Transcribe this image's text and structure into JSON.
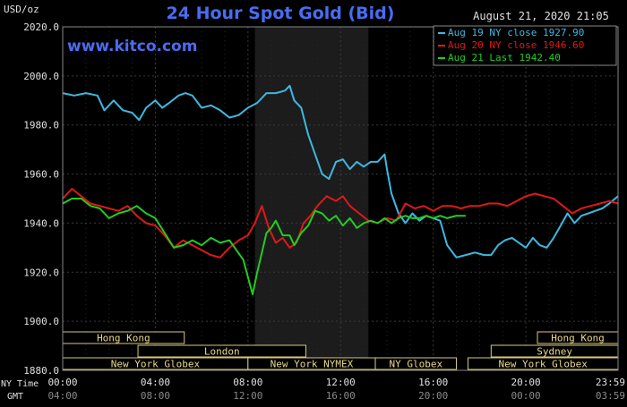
{
  "header": {
    "unit": "USD/oz",
    "title": "24 Hour Spot Gold (Bid)",
    "datetime": "August 21, 2020 21:05",
    "watermark": "www.kitco.com"
  },
  "legend": [
    {
      "label": "Aug 19 NY close 1927.90",
      "color": "#3fb8e0"
    },
    {
      "label": "Aug 20 NY close 1946.60",
      "color": "#e01818"
    },
    {
      "label": "Aug 21 Last 1942.40",
      "color": "#22cc22"
    }
  ],
  "axis_labels": {
    "ny_time": "NY Time",
    "gmt": "GMT"
  },
  "sessions": [
    {
      "label": "Hong Kong",
      "row": 0,
      "start": 0,
      "end": 5.25
    },
    {
      "label": "London",
      "row": 1,
      "start": 3.25,
      "end": 10.5
    },
    {
      "label": "New York Globex",
      "row": 2,
      "start": 0,
      "end": 8.0
    },
    {
      "label": "New York NYMEX",
      "row": 2,
      "start": 8.0,
      "end": 13.5
    },
    {
      "label": "NY Globex",
      "row": 2,
      "start": 13.5,
      "end": 17.0
    },
    {
      "label": "Hong Kong",
      "row": 0,
      "start": 20.5,
      "end": 23.98
    },
    {
      "label": "Sydney",
      "row": 1,
      "start": 18.5,
      "end": 23.98
    },
    {
      "label": "New York Globex",
      "row": 2,
      "start": 17.5,
      "end": 23.98
    }
  ],
  "chart_data": {
    "type": "line",
    "title": "24 Hour Spot Gold (Bid)",
    "ylabel": "USD/oz",
    "xlabel": "NY Time",
    "ylim": [
      1880,
      2020
    ],
    "xlim": [
      0,
      23.98
    ],
    "yticks": [
      "2020.0",
      "2000.0",
      "1980.0",
      "1960.0",
      "1940.0",
      "1920.0",
      "1900.0",
      "1880.0"
    ],
    "ytick_values": [
      2020,
      2000,
      1980,
      1960,
      1940,
      1920,
      1900,
      1880
    ],
    "xticks_ny": [
      "00:00",
      "04:00",
      "08:00",
      "12:00",
      "16:00",
      "20:00",
      "23:59"
    ],
    "xticks_gmt": [
      "04:00",
      "08:00",
      "12:00",
      "16:00",
      "20:00",
      "00:00",
      "03:59"
    ],
    "xtick_values": [
      0,
      4,
      8,
      12,
      16,
      20,
      23.98
    ],
    "shaded_range": [
      8.3,
      13.2
    ],
    "grid": true,
    "legend_position": "top-right",
    "series": [
      {
        "name": "Aug 19 NY close 1927.90",
        "color": "#3fb8e0",
        "x": [
          0,
          0.5,
          1.0,
          1.5,
          1.8,
          2.2,
          2.6,
          3.0,
          3.3,
          3.6,
          4.0,
          4.3,
          4.6,
          5.0,
          5.3,
          5.6,
          6.0,
          6.4,
          6.8,
          7.2,
          7.6,
          8.0,
          8.4,
          8.8,
          9.2,
          9.6,
          9.8,
          10.0,
          10.3,
          10.6,
          10.9,
          11.2,
          11.5,
          11.8,
          12.1,
          12.4,
          12.7,
          13.0,
          13.3,
          13.6,
          13.9,
          14.0,
          14.2,
          14.5,
          14.8,
          15.1,
          15.4,
          15.7,
          16.0,
          16.3,
          16.6,
          17.0,
          17.4,
          17.8,
          18.2,
          18.5,
          18.8,
          19.1,
          19.4,
          19.7,
          20.0,
          20.3,
          20.6,
          20.9,
          21.2,
          21.5,
          21.8,
          22.1,
          22.4,
          22.7,
          23.0,
          23.3,
          23.6,
          23.98
        ],
        "values": [
          1993,
          1992,
          1993,
          1992,
          1986,
          1990,
          1986,
          1985,
          1982,
          1987,
          1990,
          1987,
          1989,
          1992,
          1993,
          1992,
          1987,
          1988,
          1986,
          1983,
          1984,
          1987,
          1989,
          1993,
          1993,
          1994,
          1996,
          1990,
          1987,
          1976,
          1968,
          1960,
          1958,
          1965,
          1966,
          1962,
          1965,
          1963,
          1965,
          1965,
          1968,
          1962,
          1952,
          1944,
          1940,
          1944,
          1941,
          1943,
          1942,
          1941,
          1931,
          1926,
          1927,
          1928,
          1927,
          1927,
          1931,
          1933,
          1934,
          1932,
          1930,
          1934,
          1931,
          1930,
          1934,
          1939,
          1944,
          1940,
          1943,
          1944,
          1945,
          1946,
          1948,
          1951
        ]
      },
      {
        "name": "Aug 20 NY close 1946.60",
        "color": "#e01818",
        "x": [
          0,
          0.4,
          0.8,
          1.2,
          1.6,
          2.0,
          2.4,
          2.8,
          3.2,
          3.6,
          4.0,
          4.4,
          4.8,
          5.2,
          5.6,
          6.0,
          6.4,
          6.8,
          7.2,
          7.6,
          8.0,
          8.3,
          8.6,
          8.9,
          9.2,
          9.5,
          9.8,
          10.1,
          10.4,
          10.7,
          11.0,
          11.4,
          11.8,
          12.1,
          12.4,
          12.8,
          13.2,
          13.6,
          14.0,
          14.4,
          14.8,
          15.2,
          15.6,
          16.0,
          16.4,
          16.8,
          17.2,
          17.6,
          18.0,
          18.4,
          18.8,
          19.2,
          19.6,
          20.0,
          20.4,
          20.8,
          21.2,
          21.6,
          22.0,
          22.4,
          22.8,
          23.2,
          23.6,
          23.98
        ],
        "values": [
          1950,
          1954,
          1951,
          1948,
          1947,
          1946,
          1945,
          1947,
          1943,
          1940,
          1939,
          1935,
          1930,
          1933,
          1931,
          1929,
          1927,
          1926,
          1930,
          1933,
          1935,
          1940,
          1947,
          1938,
          1932,
          1934,
          1930,
          1932,
          1940,
          1943,
          1947,
          1951,
          1949,
          1951,
          1947,
          1944,
          1941,
          1940,
          1942,
          1941,
          1948,
          1946,
          1947,
          1945,
          1947,
          1947,
          1946,
          1947,
          1947,
          1948,
          1948,
          1947,
          1949,
          1951,
          1952,
          1951,
          1950,
          1947,
          1944,
          1946,
          1947,
          1948,
          1949,
          1948
        ]
      },
      {
        "name": "Aug 21 Last 1942.40",
        "color": "#22cc22",
        "x": [
          0,
          0.4,
          0.8,
          1.2,
          1.6,
          2.0,
          2.4,
          2.8,
          3.2,
          3.6,
          4.0,
          4.4,
          4.8,
          5.2,
          5.6,
          6.0,
          6.4,
          6.8,
          7.2,
          7.5,
          7.8,
          8.0,
          8.2,
          8.4,
          8.6,
          8.8,
          9.0,
          9.2,
          9.5,
          9.8,
          10.0,
          10.3,
          10.6,
          10.9,
          11.2,
          11.5,
          11.8,
          12.1,
          12.4,
          12.7,
          13.0,
          13.3,
          13.6,
          13.9,
          14.2,
          14.5,
          14.8,
          15.1,
          15.4,
          15.7,
          16.0,
          16.3,
          16.6,
          17.0,
          17.4
        ],
        "values": [
          1948,
          1950,
          1950,
          1947,
          1946,
          1942,
          1944,
          1945,
          1947,
          1944,
          1942,
          1936,
          1930,
          1931,
          1933,
          1931,
          1934,
          1932,
          1933,
          1929,
          1925,
          1918,
          1911,
          1920,
          1928,
          1936,
          1938,
          1941,
          1935,
          1935,
          1931,
          1936,
          1939,
          1945,
          1944,
          1941,
          1943,
          1939,
          1942,
          1938,
          1940,
          1941,
          1940,
          1942,
          1940,
          1942,
          1943,
          1942,
          1942,
          1943,
          1942,
          1943,
          1942,
          1943,
          1943
        ]
      }
    ]
  }
}
